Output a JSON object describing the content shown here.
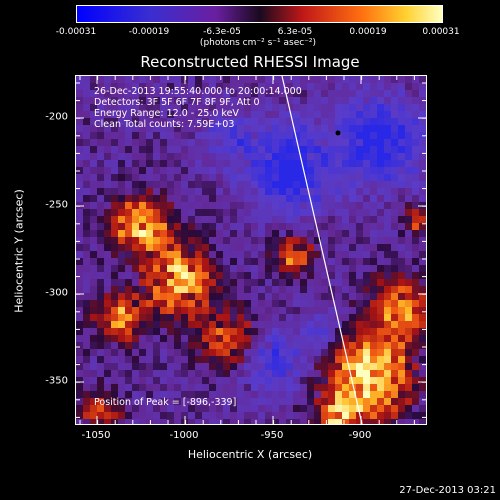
{
  "colorbar": {
    "ticks": [
      "-0.00031",
      "-0.00019",
      "-6.3e-05",
      "6.3e-05",
      "0.00019",
      "0.00031"
    ],
    "units": "(photons cm⁻² s⁻¹ asec⁻²)"
  },
  "image": {
    "title": "Reconstructed RHESSI Image",
    "info_lines": [
      "26-Dec-2013 19:55:40.000 to 20:00:14.000",
      "Detectors: 3F 5F 6F 7F 8F 9F, Att 0",
      "Energy Range: 12.0 - 25.0 keV",
      "Clean    Total counts: 7.59E+03"
    ],
    "peak_text": "Position of Peak = [-896,-339]",
    "x_axis": {
      "label": "Heliocentric X (arcsec)",
      "ticks": [
        "-1050",
        "-1000",
        "-950",
        "-900"
      ],
      "range": [
        -1070,
        -870
      ]
    },
    "y_axis": {
      "label": "Heliocentric Y (arcsec)",
      "ticks": [
        "-200",
        "-250",
        "-300",
        "-350"
      ],
      "range": [
        -370,
        -170
      ]
    }
  },
  "footer": {
    "timestamp": "27-Dec-2013 03:21"
  }
}
